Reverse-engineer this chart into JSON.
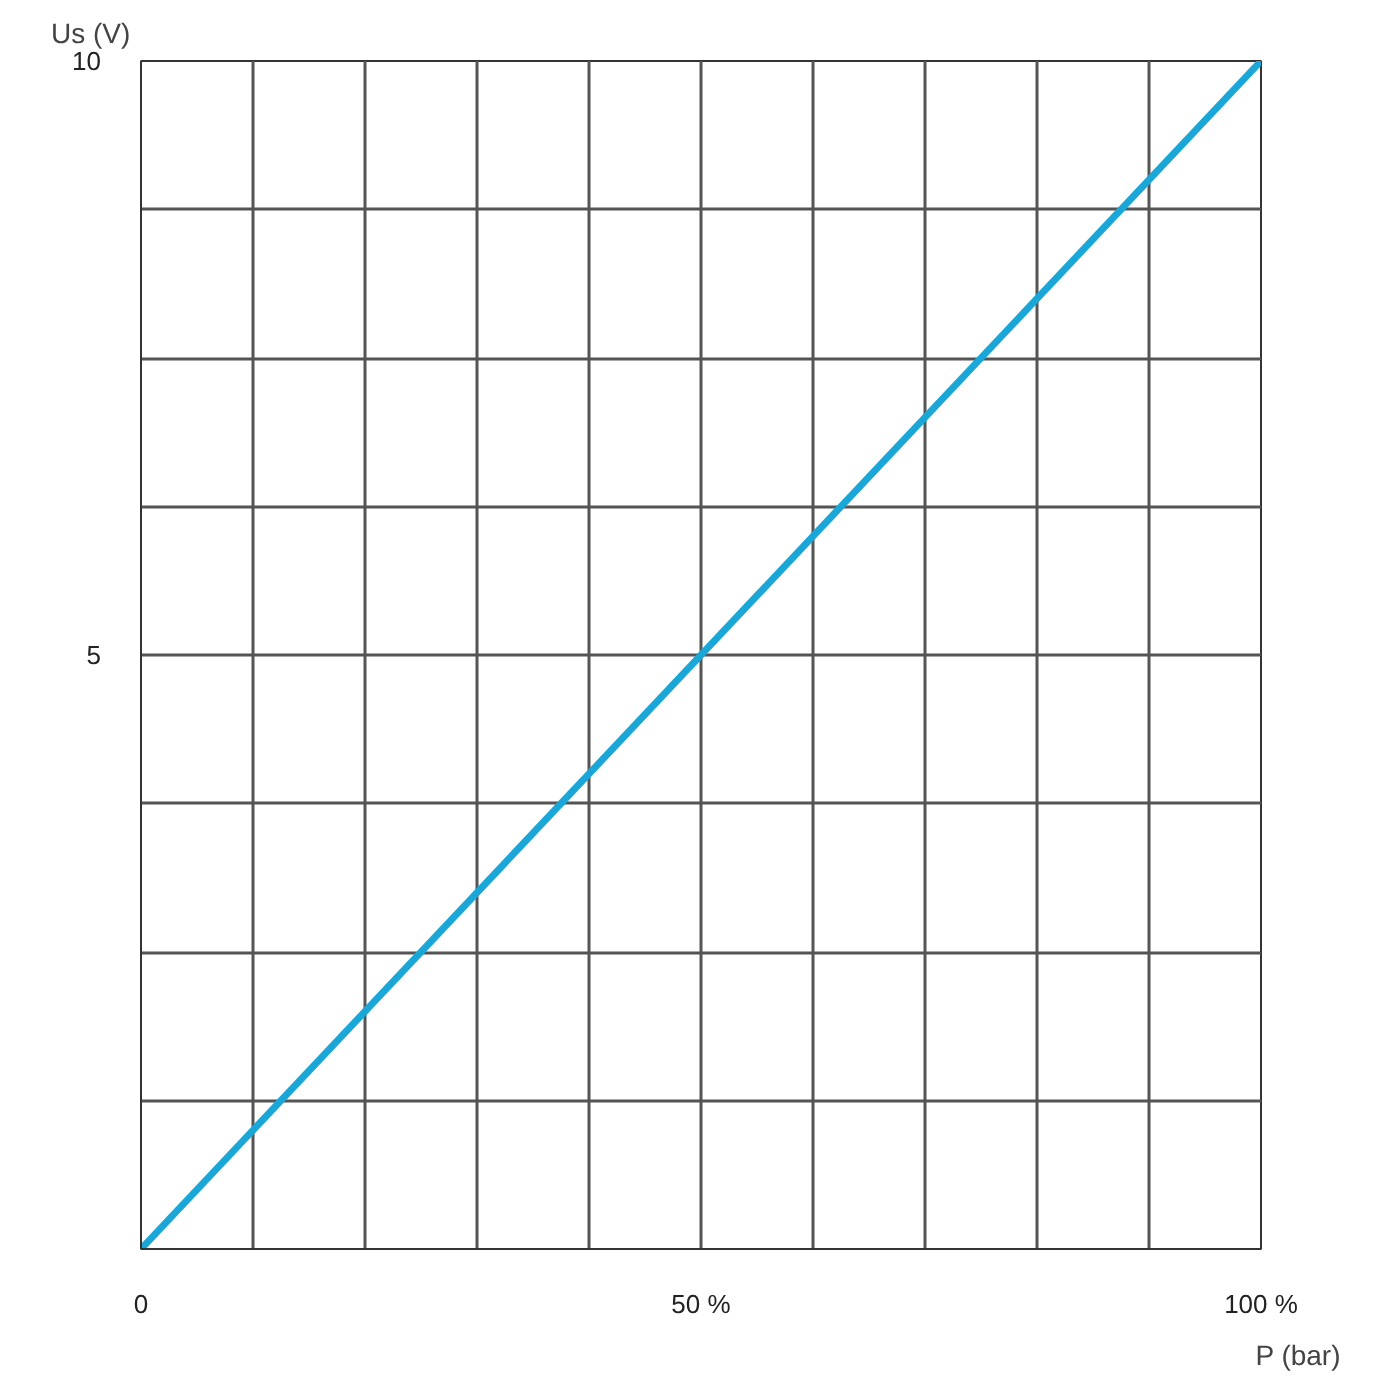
{
  "chart_data": {
    "type": "line",
    "xlabel": "P (bar)",
    "ylabel": "Us (V)",
    "x": [
      0,
      100
    ],
    "series": [
      {
        "color": "#1aa7d8",
        "values": [
          0,
          10
        ]
      }
    ],
    "xlim": [
      0,
      100
    ],
    "ylim": [
      0,
      10
    ],
    "xticks": [
      {
        "value": 0,
        "label": "0"
      },
      {
        "value": 10,
        "label": null
      },
      {
        "value": 20,
        "label": null
      },
      {
        "value": 30,
        "label": null
      },
      {
        "value": 40,
        "label": null
      },
      {
        "value": 50,
        "label": "50 %"
      },
      {
        "value": 60,
        "label": null
      },
      {
        "value": 70,
        "label": null
      },
      {
        "value": 80,
        "label": null
      },
      {
        "value": 90,
        "label": null
      },
      {
        "value": 100,
        "label": "100 %"
      }
    ],
    "yticks": [
      {
        "value": 0,
        "label": null
      },
      {
        "value": 1.25,
        "label": null
      },
      {
        "value": 2.5,
        "label": null
      },
      {
        "value": 3.75,
        "label": null
      },
      5,
      {
        "value": 6.25,
        "label": null
      },
      {
        "value": 7.5,
        "label": null
      },
      {
        "value": 8.75,
        "label": null
      },
      10
    ],
    "grid": true,
    "marker": "none",
    "line_style": "solid"
  }
}
